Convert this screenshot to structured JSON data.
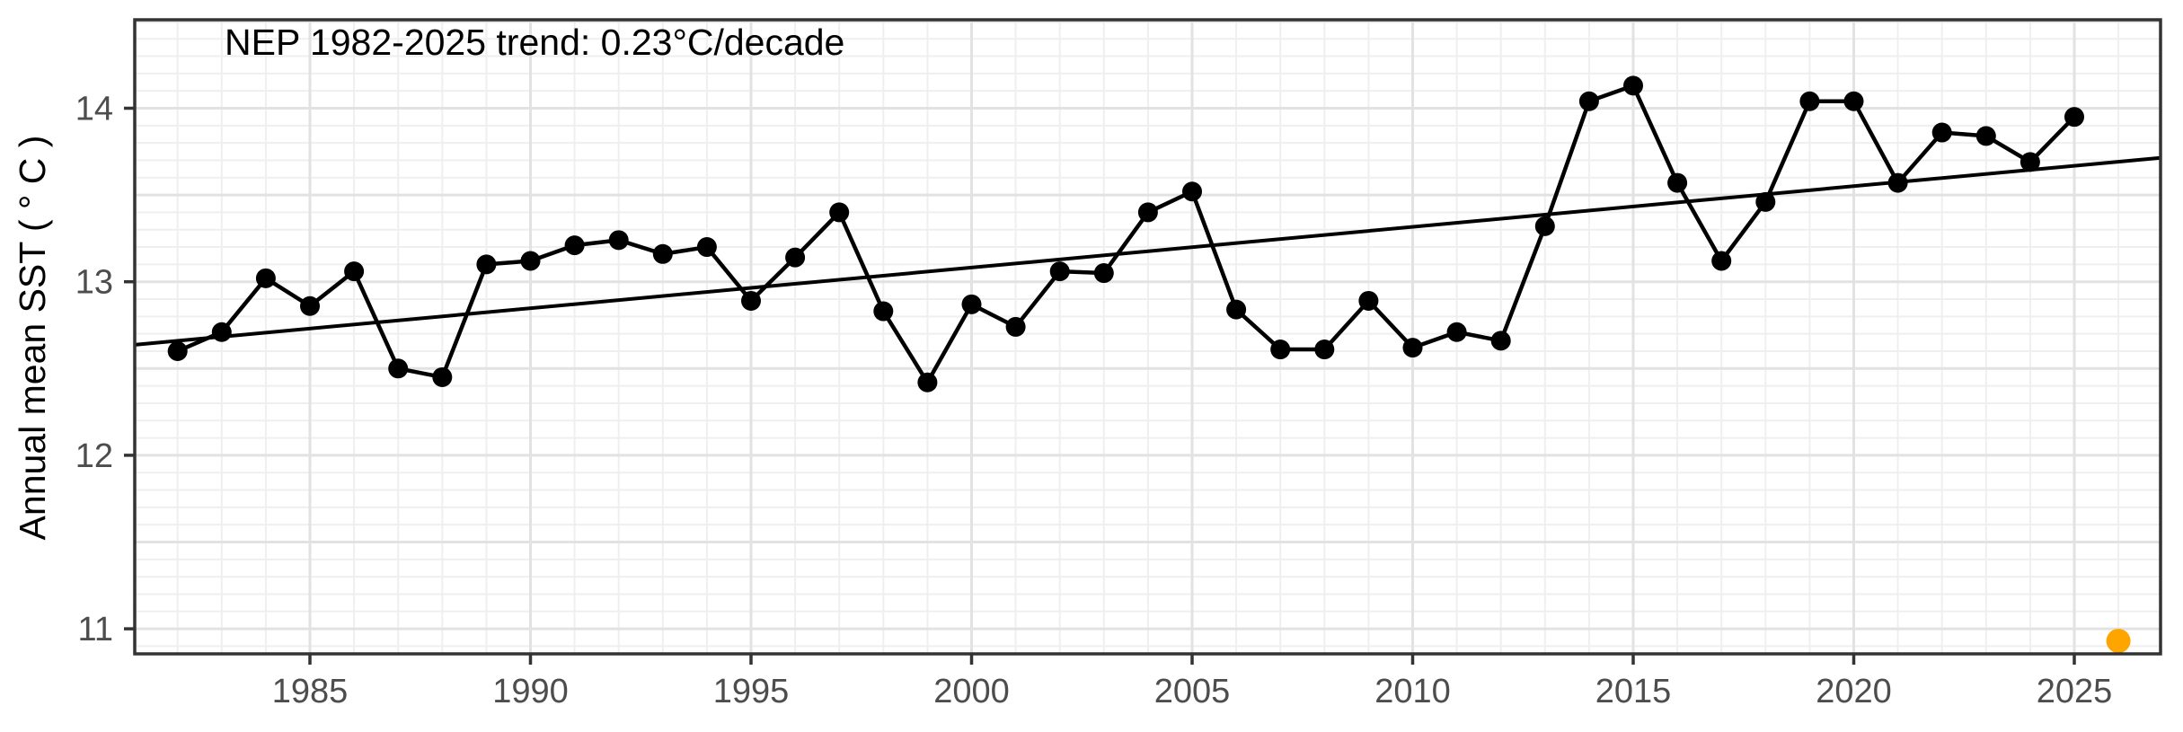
{
  "title": "NEP 1982-2025 trend: 0.23°C/decade",
  "y_axis": {
    "label": "Annual mean SST ( ° C )",
    "tick_values": [
      11,
      12,
      13,
      14
    ],
    "minor_grid_step": 0.1,
    "major_grid_step": 0.5,
    "shown_range": [
      10.85,
      14.51
    ]
  },
  "x_axis": {
    "label": "",
    "tick_values": [
      1985,
      1990,
      1995,
      2000,
      2005,
      2010,
      2015,
      2020,
      2025
    ],
    "minor_grid_step": 1,
    "major_grid_step": 5,
    "shown_range": [
      1981.0,
      2026.95
    ]
  },
  "chart_data": {
    "type": "line",
    "title": "NEP 1982-2025 trend: 0.23°C/decade",
    "xlabel": "",
    "ylabel": "Annual mean SST ( ° C )",
    "xlim": [
      1981.0,
      2026.95
    ],
    "ylim": [
      10.85,
      14.51
    ],
    "grid": true,
    "legend_position": "none",
    "x": [
      1982,
      1983,
      1984,
      1985,
      1986,
      1987,
      1988,
      1989,
      1990,
      1991,
      1992,
      1993,
      1994,
      1995,
      1996,
      1997,
      1998,
      1999,
      2000,
      2001,
      2002,
      2003,
      2004,
      2005,
      2006,
      2007,
      2008,
      2009,
      2010,
      2011,
      2012,
      2013,
      2014,
      2015,
      2016,
      2017,
      2018,
      2019,
      2020,
      2021,
      2022,
      2023,
      2024,
      2025
    ],
    "series": [
      {
        "name": "Annual mean SST",
        "color": "#000000",
        "values": [
          12.6,
          12.71,
          13.02,
          12.86,
          13.06,
          12.5,
          12.45,
          13.1,
          13.12,
          13.21,
          13.24,
          13.16,
          13.2,
          12.89,
          13.14,
          13.4,
          12.83,
          12.42,
          12.87,
          12.74,
          13.06,
          13.05,
          13.4,
          13.52,
          12.84,
          12.61,
          12.61,
          12.89,
          12.62,
          12.71,
          12.66,
          13.32,
          14.04,
          14.13,
          13.57,
          13.12,
          13.46,
          14.04,
          14.04,
          13.57,
          13.86,
          13.84,
          13.69,
          13.95
        ]
      }
    ],
    "trend_line": {
      "label": "0.23°C/decade",
      "slope_per_decade": 0.23,
      "value_at_1981": 12.637,
      "value_at_2027": 13.714,
      "color": "#000000"
    },
    "highlight_point": {
      "x": 2026,
      "value": 10.93,
      "color": "#FFA500",
      "meaning": "partial-year 2026 value"
    }
  },
  "colors": {
    "background": "#ffffff",
    "panel_background": "#ffffff",
    "minor_grid": "#efefef",
    "major_grid": "#e2e2e2",
    "panel_border": "#333333",
    "tick": "#333333",
    "tick_label": "#4d4d4d",
    "series": "#000000",
    "highlight": "#FFA500"
  }
}
